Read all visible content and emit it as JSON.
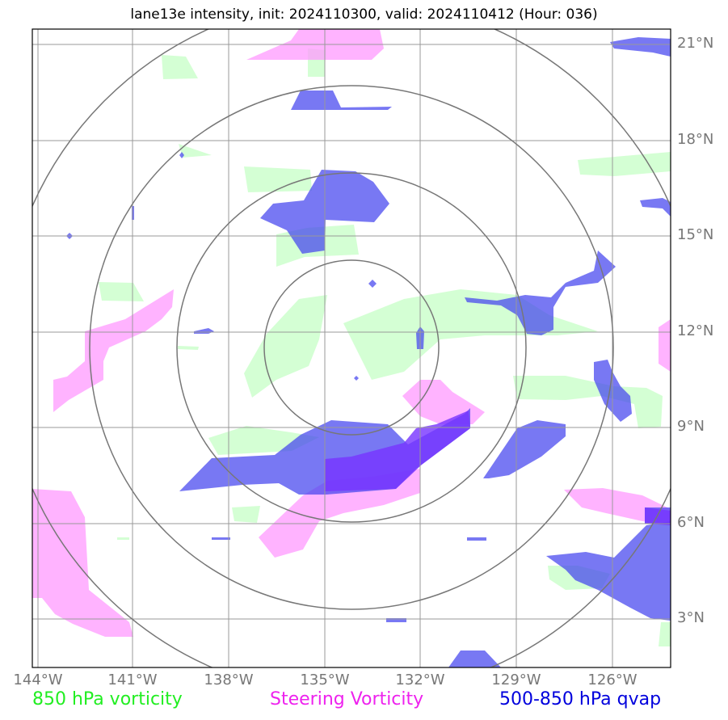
{
  "title": "lane13e intensity, init: 2024110300, valid: 2024110412 (Hour: 036)",
  "lon_labels": [
    "144°W",
    "141°W",
    "138°W",
    "135°W",
    "132°W",
    "129°W",
    "126°W"
  ],
  "lat_labels": [
    "21°N",
    "18°N",
    "15°N",
    "12°N",
    "9°N",
    "6°N",
    "3°N"
  ],
  "legend": {
    "vorticity_850": "850 hPa vorticity",
    "steering": "Steering Vorticity",
    "qvap": "500-850 hPa qvap"
  },
  "colors": {
    "vorticity_850": "#ccffcc",
    "steering": "#ff99ff",
    "qvap": "#4444ee",
    "grid": "#999999",
    "rings": "#777777"
  }
}
